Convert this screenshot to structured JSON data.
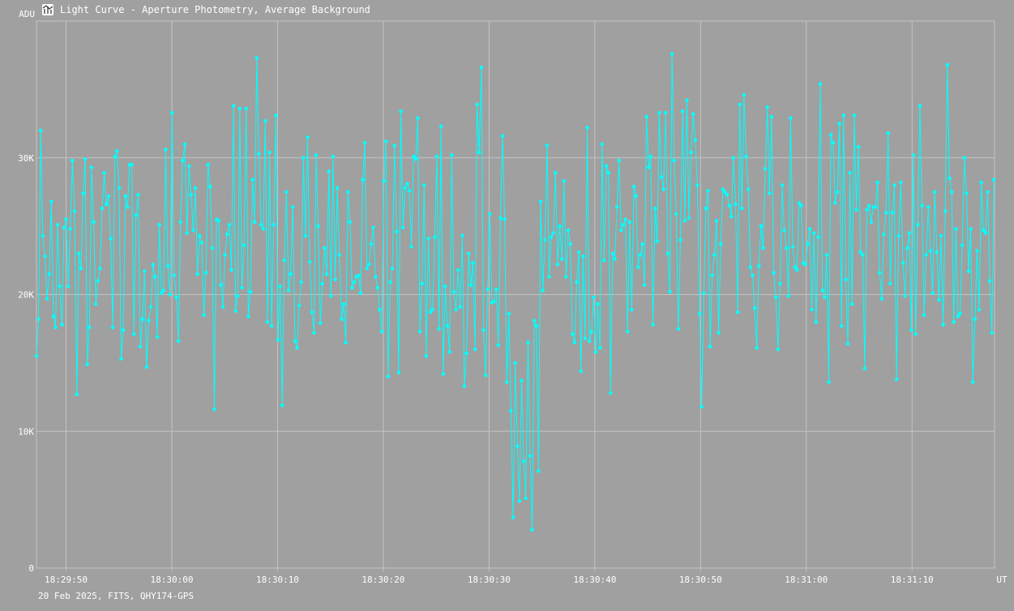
{
  "window": {
    "title": "Light Curve - Aperture Photometry, Average Background",
    "icon": "light-curve-icon"
  },
  "footer": {
    "text": "20 Feb 2025, FITS, QHY174-GPS"
  },
  "colors": {
    "background": "#a0a0a0",
    "grid": "#c4c4c4",
    "series": "#00ffff",
    "text": "#ffffff"
  },
  "chart_data": {
    "type": "line",
    "ylabel": "ADU",
    "xlabel": "UT",
    "ylim": [
      0,
      40000
    ],
    "yticks": [
      0,
      10000,
      20000,
      30000
    ],
    "ytick_labels": [
      "0",
      "10K",
      "20K",
      "30K"
    ],
    "xticks": [
      "18:29:50",
      "18:30:00",
      "18:30:10",
      "18:30:20",
      "18:30:30",
      "18:30:40",
      "18:30:50",
      "18:31:00",
      "18:31:10"
    ],
    "xlim": [
      "18:29:47.2",
      "18:31:17.8"
    ],
    "markers": true,
    "grid": true,
    "series": [
      {
        "values": [
          15500,
          18200,
          32000,
          24300,
          22800,
          19700,
          21500,
          26800,
          18400,
          17600,
          25100,
          20600,
          17800,
          24900,
          25500,
          20600,
          24800,
          29800,
          26100,
          12700,
          23000,
          21900,
          27400,
          29900,
          14900,
          17600,
          29300,
          25300,
          19300,
          21000,
          21900,
          26300,
          28900,
          26600,
          27200,
          24100,
          17600,
          30100,
          30500,
          27800,
          15300,
          17400,
          27200,
          26400,
          29500,
          29500,
          17100,
          25800,
          27300,
          16200,
          18200,
          21700,
          14700,
          18100,
          19100,
          22200,
          21300,
          16900,
          25100,
          20100,
          20300,
          30600,
          22100,
          20000,
          33300,
          21400,
          19800,
          16600,
          25300,
          29800,
          31000,
          24500,
          29400,
          27300,
          24700,
          27800,
          21500,
          24300,
          23800,
          18500,
          21600,
          29500,
          27900,
          23400,
          11600,
          25500,
          25400,
          20700,
          19100,
          22900,
          24400,
          25100,
          21800,
          33800,
          18800,
          19900,
          33600,
          20500,
          23600,
          33600,
          18400,
          20200,
          28400,
          25300,
          37300,
          30300,
          25100,
          24800,
          32700,
          18000,
          30400,
          17700,
          25100,
          33100,
          16700,
          20600,
          11900,
          22500,
          27500,
          20300,
          21500,
          26400,
          16600,
          16100,
          19200,
          20900,
          30000,
          24300,
          31500,
          22400,
          18700,
          17200,
          30200,
          25000,
          17900,
          20800,
          23400,
          21500,
          29000,
          19900,
          30100,
          21100,
          27800,
          22900,
          18200,
          19300,
          16500,
          27500,
          25300,
          20500,
          20900,
          21300,
          21400,
          20100,
          28400,
          31100,
          21900,
          22200,
          23700,
          24900,
          21300,
          20500,
          18900,
          17300,
          28300,
          31200,
          14000,
          20900,
          21900,
          30900,
          24600,
          14300,
          33400,
          24900,
          27800,
          28100,
          27600,
          23500,
          30100,
          29900,
          32900,
          17300,
          20800,
          28000,
          15500,
          24100,
          18700,
          18900,
          24200,
          30100,
          17500,
          32300,
          14200,
          20600,
          17700,
          15800,
          30200,
          20200,
          18900,
          21800,
          19100,
          24300,
          13300,
          15700,
          23000,
          20700,
          22300,
          16000,
          33900,
          30400,
          36600,
          17400,
          14100,
          20400,
          25900,
          19400,
          19500,
          20400,
          16300,
          25600,
          31600,
          25500,
          13600,
          18600,
          11500,
          3700,
          15000,
          8900,
          4900,
          13700,
          7800,
          5100,
          16500,
          8200,
          2800,
          18100,
          17700,
          7100,
          26800,
          20300,
          24000,
          30900,
          21300,
          24200,
          24500,
          28900,
          22200,
          25000,
          22600,
          28300,
          21300,
          24700,
          23700,
          17100,
          16500,
          20900,
          23100,
          14400,
          22800,
          16800,
          32200,
          16600,
          17300,
          19800,
          15800,
          19300,
          16100,
          31000,
          22500,
          29400,
          28900,
          12800,
          23000,
          22600,
          26400,
          29800,
          24700,
          25100,
          25500,
          17300,
          25300,
          18900,
          27900,
          27200,
          22000,
          22900,
          23700,
          20700,
          33000,
          29300,
          30100,
          17800,
          26300,
          23900,
          33300,
          28600,
          27700,
          33300,
          23000,
          20200,
          37600,
          29800,
          25900,
          17500,
          24000,
          33400,
          25400,
          34200,
          25600,
          30400,
          33200,
          31300,
          28000,
          18600,
          11800,
          20100,
          26300,
          27600,
          16200,
          21400,
          22900,
          25400,
          17200,
          23700,
          27700,
          27500,
          27300,
          26500,
          25700,
          30000,
          26600,
          18700,
          33900,
          26300,
          34600,
          30100,
          27700,
          22000,
          21400,
          19000,
          16100,
          22100,
          25000,
          23400,
          29200,
          33700,
          27400,
          33000,
          21600,
          19800,
          16000,
          20800,
          28000,
          24700,
          23400,
          19900,
          32900,
          23500,
          22000,
          21800,
          26700,
          26500,
          22300,
          22200,
          23700,
          24800,
          18900,
          24500,
          18000,
          24200,
          35400,
          20300,
          19800,
          22900,
          13600,
          31700,
          31100,
          26700,
          27500,
          32500,
          17700,
          33100,
          21100,
          16400,
          28900,
          19300,
          33100,
          26200,
          30800,
          23100,
          22900,
          14600,
          26200,
          26500,
          25300,
          26400,
          26400,
          28200,
          21600,
          19700,
          24400,
          26000,
          31800,
          20800,
          26000,
          28000,
          13800,
          24300,
          28200,
          22300,
          19900,
          23400,
          24500,
          17400,
          30200,
          17100,
          25100,
          33800,
          26500,
          18500,
          22900,
          26400,
          23200,
          20100,
          27500,
          23100,
          19600,
          24300,
          17800,
          26100,
          36800,
          28500,
          27500,
          18000,
          24800,
          18400,
          18600,
          23600,
          30000,
          27400,
          21700,
          24800,
          13600,
          18200,
          23200,
          18900,
          28200,
          24700,
          24500,
          27500,
          21000,
          17200,
          28400
        ]
      }
    ]
  }
}
